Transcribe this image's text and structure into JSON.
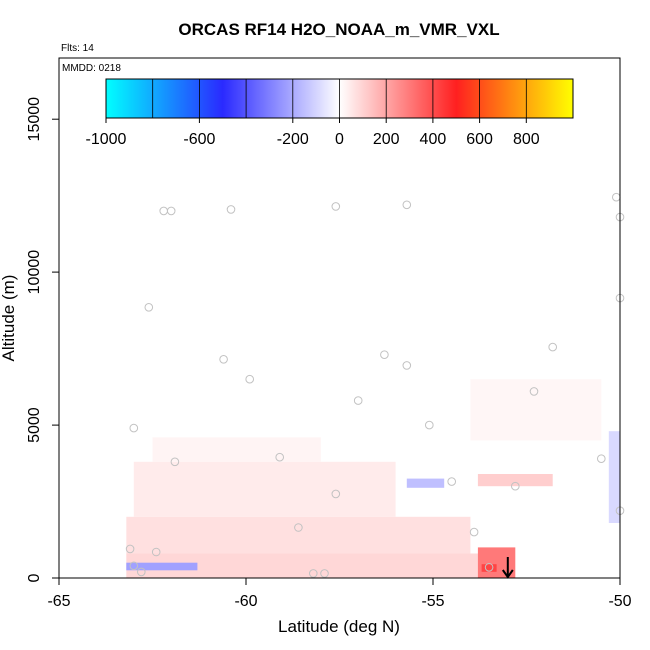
{
  "chart_data": {
    "type": "heatmap",
    "title": "ORCAS RF14 H2O_NOAA_m_VMR_VXL",
    "flights_label": "Flts: 14",
    "date_label": "MMDD: 0218",
    "xlabel": "Latitude (deg N)",
    "ylabel": "Altitude (m)",
    "xlim": [
      -65,
      -50
    ],
    "ylim": [
      0,
      17000
    ],
    "x_ticks": [
      -65,
      -60,
      -55,
      -50
    ],
    "y_ticks": [
      0,
      5000,
      10000,
      15000
    ],
    "colorbar": {
      "range": [
        -1000,
        1000
      ],
      "ticks": [
        -1000,
        -600,
        -200,
        0,
        200,
        400,
        600,
        800
      ],
      "stops": [
        "#00ffff",
        "#2a2aff",
        "#ffffff",
        "#ff2020",
        "#ffff00"
      ]
    },
    "regions": [
      {
        "name": "low-level moist band",
        "x": [
          -63.2,
          -53.5
        ],
        "y": [
          0,
          800
        ],
        "value": 90
      },
      {
        "name": "lower layer",
        "x": [
          -63.2,
          -54.0
        ],
        "y": [
          800,
          2000
        ],
        "value": 70
      },
      {
        "name": "mid layer",
        "x": [
          -63.0,
          -56.0
        ],
        "y": [
          2000,
          3800
        ],
        "value": 45
      },
      {
        "name": "upper plume",
        "x": [
          -62.5,
          -58.0
        ],
        "y": [
          3800,
          4600
        ],
        "value": 25
      },
      {
        "name": "southern enhancement",
        "x": [
          -53.8,
          -52.8
        ],
        "y": [
          0,
          1000
        ],
        "value": 300
      },
      {
        "name": "core maximum",
        "x": [
          -53.7,
          -53.3
        ],
        "y": [
          200,
          450
        ],
        "value": 420
      },
      {
        "name": "near-surface dry anomaly",
        "x": [
          -63.2,
          -61.3
        ],
        "y": [
          250,
          500
        ],
        "value": -220
      },
      {
        "name": "mid-level dry streak",
        "x": [
          -55.7,
          -54.7
        ],
        "y": [
          2950,
          3250
        ],
        "value": -150
      },
      {
        "name": "northern dry column",
        "x": [
          -50.3,
          -50.0
        ],
        "y": [
          1800,
          4800
        ],
        "value": -90
      },
      {
        "name": "moist streak 3 km",
        "x": [
          -53.8,
          -51.8
        ],
        "y": [
          3000,
          3400
        ],
        "value": 110
      },
      {
        "name": "upper moist layer",
        "x": [
          -54.0,
          -50.5
        ],
        "y": [
          4500,
          6500
        ],
        "value": 20
      }
    ],
    "points": [
      {
        "x": -62.2,
        "y": 12000
      },
      {
        "x": -62.0,
        "y": 12000
      },
      {
        "x": -60.4,
        "y": 12050
      },
      {
        "x": -57.6,
        "y": 12150
      },
      {
        "x": -55.7,
        "y": 12200
      },
      {
        "x": -50.1,
        "y": 12450
      },
      {
        "x": -50.0,
        "y": 11800
      },
      {
        "x": -62.6,
        "y": 8850
      },
      {
        "x": -50.0,
        "y": 9150
      },
      {
        "x": -60.6,
        "y": 7150
      },
      {
        "x": -56.3,
        "y": 7300
      },
      {
        "x": -55.7,
        "y": 6950
      },
      {
        "x": -51.8,
        "y": 7550
      },
      {
        "x": -59.9,
        "y": 6500
      },
      {
        "x": -52.3,
        "y": 6100
      },
      {
        "x": -57.0,
        "y": 5800
      },
      {
        "x": -55.1,
        "y": 5000
      },
      {
        "x": -63.0,
        "y": 4900
      },
      {
        "x": -59.1,
        "y": 3950
      },
      {
        "x": -61.9,
        "y": 3800
      },
      {
        "x": -50.5,
        "y": 3900
      },
      {
        "x": -54.5,
        "y": 3150
      },
      {
        "x": -52.8,
        "y": 3000
      },
      {
        "x": -57.6,
        "y": 2750
      },
      {
        "x": -50.0,
        "y": 2200
      },
      {
        "x": -58.6,
        "y": 1650
      },
      {
        "x": -53.9,
        "y": 1500
      },
      {
        "x": -63.1,
        "y": 950
      },
      {
        "x": -62.4,
        "y": 850
      },
      {
        "x": -63.0,
        "y": 400
      },
      {
        "x": -62.8,
        "y": 200
      },
      {
        "x": -58.2,
        "y": 150
      },
      {
        "x": -57.9,
        "y": 150
      },
      {
        "x": -53.5,
        "y": 350
      }
    ],
    "marker": {
      "type": "down-arrow",
      "x": -53.0,
      "y": 0
    }
  }
}
